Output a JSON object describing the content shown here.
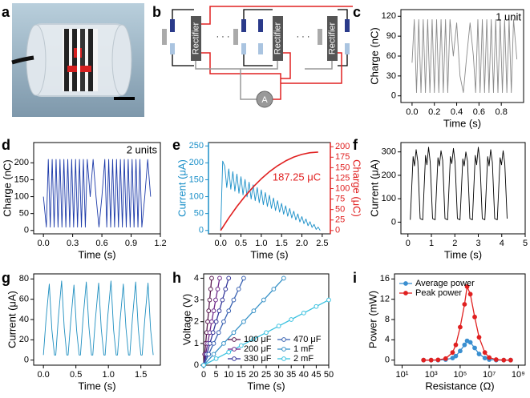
{
  "panel_labels": [
    "a",
    "b",
    "c",
    "d",
    "e",
    "f",
    "g",
    "h",
    "i"
  ],
  "diagram": {
    "rectifier": "Rectifier",
    "ammeter": "A",
    "ellipsis": "· · ·"
  },
  "chart_data": [
    {
      "type": "line",
      "xlabel": "Time (s)",
      "ylabel": "Charge (nC)",
      "annotation": "1 unit",
      "xlim": [
        -0.1,
        1.0
      ],
      "xticks": [
        {
          "value": 0,
          "label": "0.0"
        },
        0.2,
        0.4,
        0.6,
        0.8
      ],
      "ylim": [
        -10,
        130
      ],
      "yticks": [
        0,
        30,
        60,
        90,
        120
      ],
      "series": [
        {
          "color": "#8a8a8a",
          "x": [
            0,
            0.02,
            0.04,
            0.06,
            0.08,
            0.1,
            0.12,
            0.14,
            0.16,
            0.18,
            0.2,
            0.22,
            0.24,
            0.26,
            0.28,
            0.3,
            0.32,
            0.34,
            0.37,
            0.4,
            0.43,
            0.46,
            0.49,
            0.52,
            0.55,
            0.57,
            0.59,
            0.61,
            0.63,
            0.65,
            0.67,
            0.69,
            0.71,
            0.73,
            0.75,
            0.77,
            0.79,
            0.81,
            0.83,
            0.85,
            0.87,
            0.89,
            0.91,
            0.94
          ],
          "values": [
            50,
            115,
            5,
            115,
            5,
            115,
            5,
            115,
            5,
            115,
            5,
            115,
            5,
            115,
            5,
            115,
            5,
            115,
            60,
            110,
            30,
            5,
            60,
            110,
            60,
            5,
            115,
            5,
            115,
            5,
            115,
            5,
            115,
            5,
            115,
            5,
            115,
            5,
            115,
            5,
            115,
            5,
            115,
            55
          ]
        }
      ]
    },
    {
      "type": "line",
      "xlabel": "Time (s)",
      "ylabel": "Charge (nC)",
      "annotation": "2 units",
      "xlim": [
        -0.1,
        1.2
      ],
      "xticks": [
        {
          "value": 0,
          "label": "0.0"
        },
        0.3,
        0.6,
        0.9,
        1.2
      ],
      "ylim": [
        -10,
        260
      ],
      "yticks": [
        0,
        50,
        100,
        150,
        200
      ],
      "series": [
        {
          "color": "#1c3aa9",
          "x": [
            0,
            0.03,
            0.05,
            0.07,
            0.09,
            0.11,
            0.13,
            0.15,
            0.17,
            0.19,
            0.21,
            0.23,
            0.25,
            0.27,
            0.29,
            0.31,
            0.33,
            0.35,
            0.37,
            0.39,
            0.41,
            0.43,
            0.45,
            0.48,
            0.51,
            0.54,
            0.57,
            0.6,
            0.63,
            0.65,
            0.67,
            0.69,
            0.71,
            0.73,
            0.75,
            0.77,
            0.79,
            0.81,
            0.83,
            0.85,
            0.87,
            0.89,
            0.91,
            0.93,
            0.95,
            0.97,
            0.99,
            1.01,
            1.04,
            1.07,
            1.1
          ],
          "values": [
            100,
            10,
            210,
            10,
            210,
            10,
            210,
            10,
            210,
            10,
            210,
            10,
            210,
            10,
            210,
            10,
            210,
            10,
            210,
            10,
            210,
            10,
            210,
            100,
            210,
            100,
            10,
            100,
            210,
            10,
            210,
            10,
            210,
            10,
            210,
            10,
            210,
            10,
            210,
            10,
            210,
            10,
            210,
            10,
            210,
            10,
            210,
            10,
            100,
            210,
            100
          ]
        }
      ]
    },
    {
      "type": "line",
      "xlabel": "Time (s)",
      "ylabel": "Current (μA)",
      "y2label": "Charge (μC)",
      "annotation": "187.25 μC",
      "annotation_color": "#e02020",
      "color_axes": true,
      "xlim": [
        -0.3,
        2.7
      ],
      "xticks": [
        {
          "value": 0,
          "label": "0.0"
        },
        0.5,
        {
          "value": 1,
          "label": "1.0"
        },
        1.5,
        {
          "value": 2,
          "label": "2.0"
        },
        2.5
      ],
      "ylim": [
        -10,
        260
      ],
      "yticks": [
        0,
        50,
        100,
        150,
        200,
        250
      ],
      "y2lim": [
        -8,
        210
      ],
      "y2ticks": [
        0,
        25,
        50,
        75,
        100,
        125,
        150,
        175,
        200
      ],
      "series": [
        {
          "color": "#1a8fc8",
          "x": [
            0,
            0.05,
            0.1,
            0.15,
            0.2,
            0.25,
            0.3,
            0.35,
            0.4,
            0.45,
            0.5,
            0.55,
            0.6,
            0.65,
            0.7,
            0.75,
            0.8,
            0.85,
            0.9,
            0.95,
            1,
            1.05,
            1.1,
            1.15,
            1.2,
            1.25,
            1.3,
            1.35,
            1.4,
            1.45,
            1.5,
            1.55,
            1.6,
            1.65,
            1.7,
            1.75,
            1.8,
            1.85,
            1.9,
            1.95,
            2,
            2.05,
            2.1,
            2.15,
            2.2,
            2.25,
            2.3,
            2.35,
            2.4,
            2.45
          ],
          "values": [
            0,
            205,
            190,
            127,
            182,
            122,
            174,
            116,
            167,
            110,
            159,
            105,
            151,
            99,
            143,
            93,
            135,
            88,
            127,
            82,
            120,
            76,
            112,
            71,
            104,
            65,
            96,
            59,
            88,
            54,
            80,
            48,
            73,
            42,
            65,
            37,
            57,
            31,
            49,
            25,
            41,
            20,
            34,
            14,
            26,
            9,
            18,
            3,
            10,
            0
          ]
        },
        {
          "color": "#e02020",
          "axis": "y2",
          "width": 1.6,
          "x": [
            0,
            0.2,
            0.4,
            0.6,
            0.8,
            1,
            1.2,
            1.4,
            1.6,
            1.8,
            2,
            2.2,
            2.4
          ],
          "values": [
            0,
            29.9,
            57.2,
            81.8,
            103.9,
            123.4,
            140.3,
            154.5,
            166.2,
            175.3,
            181.8,
            185.7,
            187.25
          ]
        }
      ]
    },
    {
      "type": "line",
      "xlabel": "Time (s)",
      "ylabel": "Current (μA)",
      "xlim": [
        -0.3,
        5
      ],
      "xticks": [
        0,
        1,
        2,
        3,
        4,
        5
      ],
      "ylim": [
        -50,
        340
      ],
      "yticks": [
        0,
        100,
        200,
        300
      ],
      "series": [
        {
          "color": "#000000",
          "x": [
            0.1,
            0.22,
            0.28,
            0.35,
            0.42,
            0.52,
            0.63,
            0.75,
            0.81,
            0.88,
            0.95,
            1.05,
            1.16,
            1.28,
            1.34,
            1.41,
            1.48,
            1.58,
            1.69,
            1.81,
            1.87,
            1.94,
            2.01,
            2.11,
            2.22,
            2.34,
            2.4,
            2.47,
            2.54,
            2.64,
            2.75,
            2.87,
            2.93,
            3,
            3.07,
            3.17,
            3.28,
            3.4,
            3.46,
            3.53,
            3.6,
            3.7,
            3.81,
            3.93,
            3.99,
            4.06,
            4.13,
            4.23
          ],
          "values": [
            10,
            280,
            240,
            310,
            260,
            15,
            10,
            285,
            245,
            320,
            255,
            15,
            10,
            275,
            240,
            305,
            265,
            15,
            10,
            280,
            250,
            315,
            255,
            15,
            10,
            270,
            240,
            300,
            260,
            15,
            10,
            285,
            245,
            320,
            260,
            15,
            10,
            280,
            240,
            310,
            255,
            15,
            10,
            275,
            245,
            305,
            250,
            15
          ]
        }
      ]
    },
    {
      "type": "line",
      "xlabel": "Time (s)",
      "ylabel": "Current (μA)",
      "xlim": [
        -0.15,
        1.8
      ],
      "xticks": [
        {
          "value": 0,
          "label": "0.0"
        },
        0.5,
        {
          "value": 1,
          "label": "1.0"
        },
        1.5
      ],
      "ylim": [
        -5,
        85
      ],
      "yticks": [
        0,
        20,
        40,
        60,
        80
      ],
      "series": [
        {
          "color": "#1f8fc0",
          "x": [
            0,
            0.04,
            0.09,
            0.13,
            0.17,
            0.19,
            0.23,
            0.28,
            0.32,
            0.36,
            0.38,
            0.42,
            0.47,
            0.51,
            0.55,
            0.57,
            0.61,
            0.66,
            0.7,
            0.74,
            0.76,
            0.8,
            0.85,
            0.89,
            0.93,
            0.95,
            0.99,
            1.04,
            1.08,
            1.12,
            1.14,
            1.18,
            1.23,
            1.27,
            1.31,
            1.33,
            1.37,
            1.42,
            1.46,
            1.5,
            1.52,
            1.56,
            1.61,
            1.65,
            1.69
          ],
          "values": [
            5,
            40,
            75,
            30,
            5,
            5,
            42,
            78,
            32,
            5,
            5,
            38,
            74,
            30,
            5,
            5,
            41,
            77,
            33,
            5,
            5,
            40,
            76,
            31,
            5,
            5,
            43,
            78,
            30,
            5,
            5,
            39,
            75,
            32,
            5,
            5,
            41,
            77,
            31,
            5,
            5,
            40,
            76,
            30,
            5
          ]
        }
      ]
    },
    {
      "type": "line",
      "xlabel": "Time (s)",
      "ylabel": "Voltage (V)",
      "legend": "lower right",
      "legend_columns": 2,
      "xlim": [
        0,
        50
      ],
      "xticks": [
        0,
        5,
        10,
        15,
        20,
        25,
        30,
        35,
        40,
        45,
        50
      ],
      "ylim": [
        0,
        4.2
      ],
      "yticks": [
        0,
        1,
        2,
        3,
        4
      ],
      "series": [
        {
          "name": "100 μF",
          "color": "#5a1a50",
          "marker": "open",
          "x": [
            0,
            0.4,
            0.8,
            1.2,
            1.6,
            2,
            2.4,
            2.8,
            3.2
          ],
          "values": [
            0,
            0.5,
            1,
            1.5,
            2,
            2.5,
            3,
            3.5,
            4
          ]
        },
        {
          "name": "200 μF",
          "color": "#6e2a8a",
          "marker": "open",
          "x": [
            0,
            0.8,
            1.6,
            2.4,
            3.2,
            4,
            4.8,
            5.6,
            6.4
          ],
          "values": [
            0,
            0.5,
            1,
            1.5,
            2,
            2.5,
            3,
            3.5,
            4
          ]
        },
        {
          "name": "330 μF",
          "color": "#35379a",
          "marker": "open",
          "x": [
            0,
            1.25,
            2.5,
            3.75,
            5,
            6.25,
            7.5,
            8.75,
            10
          ],
          "values": [
            0,
            0.5,
            1,
            1.5,
            2,
            2.5,
            3,
            3.5,
            4
          ]
        },
        {
          "name": "470 μF",
          "color": "#3a62b2",
          "marker": "open",
          "x": [
            0,
            2,
            4,
            6,
            8,
            10,
            12,
            14,
            16
          ],
          "values": [
            0,
            0.5,
            1,
            1.5,
            2,
            2.5,
            3,
            3.5,
            4
          ]
        },
        {
          "name": "1 mF",
          "color": "#3a93c8",
          "marker": "open",
          "x": [
            0,
            4,
            8,
            12,
            16,
            20,
            24,
            28,
            32
          ],
          "values": [
            0,
            0.5,
            1,
            1.5,
            2,
            2.5,
            3,
            3.5,
            4
          ]
        },
        {
          "name": "2 mF",
          "color": "#3cc2e0",
          "marker": "open",
          "x": [
            0,
            5,
            10,
            15,
            20,
            25,
            30,
            35,
            40,
            45,
            50
          ],
          "values": [
            0,
            0.3,
            0.6,
            0.9,
            1.2,
            1.5,
            1.8,
            2.1,
            2.4,
            2.7,
            3
          ]
        }
      ]
    },
    {
      "type": "line",
      "xlabel": "Resistance (Ω)",
      "ylabel": "Power (mW)",
      "xscale": "log",
      "legend": "upper left",
      "xlim": [
        3,
        3000000000
      ],
      "xticks": [
        {
          "value": 10,
          "label": "10¹"
        },
        {
          "value": 1000,
          "label": "10³"
        },
        {
          "value": 100000,
          "label": "10⁵"
        },
        {
          "value": 10000000,
          "label": "10⁷"
        },
        {
          "value": 1000000000,
          "label": "10⁹"
        }
      ],
      "ylim": [
        -1,
        17
      ],
      "yticks": [
        0,
        4,
        8,
        12,
        16
      ],
      "series": [
        {
          "name": "Average  power",
          "color": "#3a8fd0",
          "marker": "filled",
          "x": [
            300,
            1000,
            3000,
            10000,
            30000,
            50000,
            100000,
            200000,
            300000,
            500000,
            1000000,
            2000000,
            5000000,
            10000000,
            30000000,
            100000000,
            300000000
          ],
          "values": [
            0,
            0,
            0,
            0.1,
            0.4,
            0.8,
            1.8,
            3,
            3.8,
            3.5,
            2.4,
            1.2,
            0.4,
            0.1,
            0,
            0,
            0
          ]
        },
        {
          "name": "Peak power",
          "color": "#e02020",
          "marker": "filled",
          "x": [
            300,
            1000,
            3000,
            10000,
            30000,
            50000,
            100000,
            200000,
            300000,
            500000,
            1000000,
            2000000,
            5000000,
            10000000,
            30000000,
            100000000,
            300000000
          ],
          "values": [
            0,
            0,
            0.05,
            0.3,
            1.5,
            3,
            6.5,
            11,
            14.5,
            13,
            8.5,
            4.5,
            1.5,
            0.5,
            0.1,
            0,
            0
          ]
        }
      ]
    }
  ]
}
